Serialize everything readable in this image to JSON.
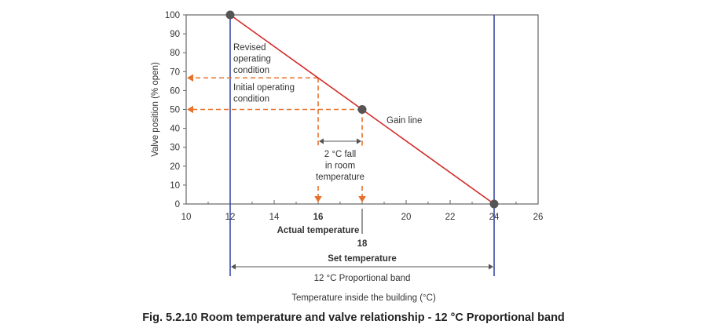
{
  "chart_data": {
    "type": "line",
    "xlabel": "Temperature inside the building (°C)",
    "ylabel": "Valve position (% open)",
    "xlim": [
      10,
      26
    ],
    "ylim": [
      0,
      100
    ],
    "xticks": [
      10,
      12,
      14,
      16,
      18,
      20,
      22,
      24,
      26
    ],
    "xtick_labels": [
      "10",
      "12",
      "14",
      "",
      "",
      "20",
      "22",
      "24",
      "26"
    ],
    "yticks": [
      0,
      10,
      20,
      30,
      40,
      50,
      60,
      70,
      80,
      90,
      100
    ],
    "grid": false,
    "series": [
      {
        "name": "Gain line",
        "x": [
          12,
          24
        ],
        "y": [
          100,
          0
        ]
      }
    ],
    "points": [
      {
        "x": 12,
        "y": 100
      },
      {
        "x": 18,
        "y": 50
      },
      {
        "x": 24,
        "y": 0
      }
    ],
    "band_lines": [
      12,
      24
    ],
    "operating_points": {
      "initial": {
        "x": 18,
        "y": 50
      },
      "revised": {
        "x": 16,
        "y": 66.7
      }
    },
    "annotations": {
      "revised": [
        "Revised",
        "operating",
        "condition"
      ],
      "initial": [
        "Initial operating",
        "condition"
      ],
      "gain": "Gain line",
      "fall": [
        "2 °C fall",
        "in room",
        "temperature"
      ],
      "actual_value": "16",
      "actual_label": "Actual temperature",
      "set_value": "18",
      "set_label": "Set temperature",
      "band": "12 °C Proportional band"
    },
    "title": "Fig. 5.2.10 Room temperature and valve relationship - 12 °C Proportional band"
  },
  "colors": {
    "gain_line": "#d42b2b",
    "dashed": "#e8702a",
    "band": "#2f3f9e",
    "axis": "#666666",
    "marker": "#555555"
  }
}
